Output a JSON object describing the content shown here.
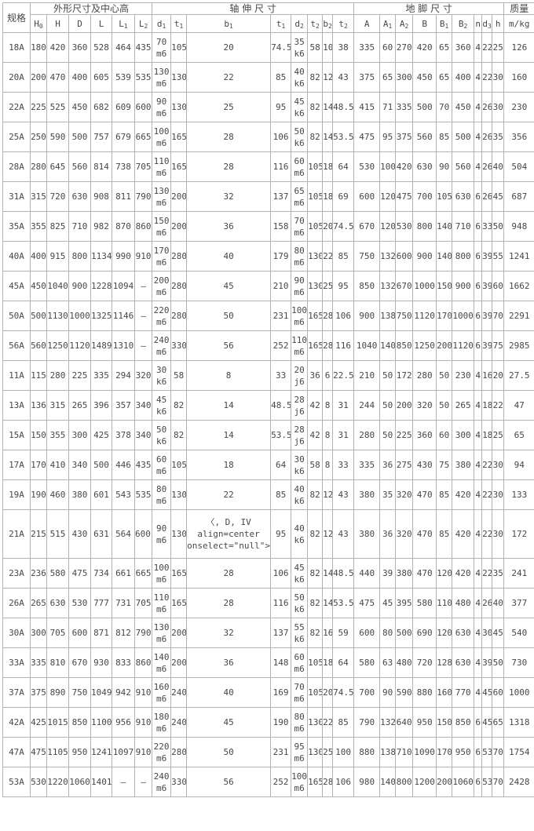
{
  "table": {
    "col_groups": [
      {
        "label": "规格",
        "colspan": 1,
        "rowspan": 2
      },
      {
        "label": "外形尺寸及中心高",
        "colspan": 6,
        "rowspan": 1
      },
      {
        "label": "轴 伸 尺 寸",
        "colspan": 8,
        "rowspan": 1
      },
      {
        "label": "地 脚 尺 寸",
        "colspan": 9,
        "rowspan": 1
      },
      {
        "label": "质量",
        "colspan": 1,
        "rowspan": 1
      }
    ],
    "columns": [
      {
        "b": "H",
        "s": "0"
      },
      {
        "b": "H"
      },
      {
        "b": "D"
      },
      {
        "b": "L"
      },
      {
        "b": "L",
        "s": "1"
      },
      {
        "b": "L",
        "s": "2"
      },
      {
        "b": "d",
        "s": "1"
      },
      {
        "b": "t",
        "s": "1"
      },
      {
        "b": "b",
        "s": "1"
      },
      {
        "b": "t",
        "s": "1"
      },
      {
        "b": "d",
        "s": "2"
      },
      {
        "b": "t",
        "s": "2"
      },
      {
        "b": "b",
        "s": "2"
      },
      {
        "b": "t",
        "s": "2"
      },
      {
        "b": "A"
      },
      {
        "b": "A",
        "s": "1"
      },
      {
        "b": "A",
        "s": "2"
      },
      {
        "b": "B"
      },
      {
        "b": "B",
        "s": "1"
      },
      {
        "b": "B",
        "s": "2"
      },
      {
        "b": "n"
      },
      {
        "b": "d",
        "s": "3"
      },
      {
        "b": "h"
      },
      {
        "b": "m/kg"
      }
    ],
    "rows": [
      [
        "18A",
        "180",
        "420",
        "360",
        "528",
        "464",
        "435",
        "70\nm6",
        "105",
        "20",
        "74.5",
        "35\nk6",
        "58",
        "10",
        "38",
        "335",
        "60",
        "270",
        "420",
        "65",
        "360",
        "4",
        "22",
        "25",
        "126"
      ],
      [
        "20A",
        "200",
        "470",
        "400",
        "605",
        "539",
        "535",
        "130\nm6",
        "130",
        "22",
        "85",
        "40\nk6",
        "82",
        "12",
        "43",
        "375",
        "65",
        "300",
        "450",
        "65",
        "400",
        "4",
        "22",
        "30",
        "160"
      ],
      [
        "22A",
        "225",
        "525",
        "450",
        "682",
        "609",
        "600",
        "90\nm6",
        "130",
        "25",
        "95",
        "45\nk6",
        "82",
        "14",
        "48.5",
        "415",
        "71",
        "335",
        "500",
        "70",
        "450",
        "4",
        "26",
        "30",
        "230"
      ],
      [
        "25A",
        "250",
        "590",
        "500",
        "757",
        "679",
        "665",
        "100\nm6",
        "165",
        "28",
        "106",
        "50\nk6",
        "82",
        "14",
        "53.5",
        "475",
        "95",
        "375",
        "560",
        "85",
        "500",
        "4",
        "26",
        "35",
        "356"
      ],
      [
        "28A",
        "280",
        "645",
        "560",
        "814",
        "738",
        "705",
        "110\nm6",
        "165",
        "28",
        "116",
        "60\nm6",
        "105",
        "18",
        "64",
        "530",
        "100",
        "420",
        "630",
        "90",
        "560",
        "4",
        "26",
        "40",
        "504"
      ],
      [
        "31A",
        "315",
        "720",
        "630",
        "908",
        "811",
        "790",
        "130\nm6",
        "200",
        "32",
        "137",
        "65\nm6",
        "105",
        "18",
        "69",
        "600",
        "120",
        "475",
        "700",
        "105",
        "630",
        "6",
        "26",
        "45",
        "687"
      ],
      [
        "35A",
        "355",
        "825",
        "710",
        "982",
        "870",
        "860",
        "150\nm6",
        "200",
        "36",
        "158",
        "70\nm6",
        "105",
        "20",
        "74.5",
        "670",
        "120",
        "530",
        "800",
        "140",
        "710",
        "6",
        "33",
        "50",
        "948"
      ],
      [
        "40A",
        "400",
        "915",
        "800",
        "1134",
        "990",
        "910",
        "170\nm6",
        "280",
        "40",
        "179",
        "80\nm6",
        "130",
        "22",
        "85",
        "750",
        "132",
        "600",
        "900",
        "140",
        "800",
        "6",
        "39",
        "55",
        "1241"
      ],
      [
        "45A",
        "450",
        "1040",
        "900",
        "1228",
        "1094",
        "—",
        "200\nm6",
        "280",
        "45",
        "210",
        "90\nm6",
        "130",
        "25",
        "95",
        "850",
        "132",
        "670",
        "1000",
        "150",
        "900",
        "6",
        "39",
        "60",
        "1662"
      ],
      [
        "50A",
        "500",
        "1130",
        "1000",
        "1325",
        "1146",
        "—",
        "220\nm6",
        "280",
        "50",
        "231",
        "100\nm6",
        "165",
        "28",
        "106",
        "900",
        "138",
        "750",
        "1120",
        "170",
        "1000",
        "6",
        "39",
        "70",
        "2291"
      ],
      [
        "56A",
        "560",
        "1250",
        "1120",
        "1489",
        "1310",
        "—",
        "240\nm6",
        "330",
        "56",
        "252",
        "110\nm6",
        "165",
        "28",
        "116",
        "1040",
        "140",
        "850",
        "1250",
        "200",
        "1120",
        "6",
        "39",
        "75",
        "2985"
      ],
      [
        "11A",
        "115",
        "280",
        "225",
        "335",
        "294",
        "320",
        "30\nk6",
        "58",
        "8",
        "33",
        "20\nj6",
        "36",
        "6",
        "22.5",
        "210",
        "50",
        "172",
        "280",
        "50",
        "230",
        "4",
        "16",
        "20",
        "27.5"
      ],
      [
        "13A",
        "136",
        "315",
        "265",
        "396",
        "357",
        "340",
        "45\nk6",
        "82",
        "14",
        "48.5",
        "28\nj6",
        "42",
        "8",
        "31",
        "244",
        "50",
        "200",
        "320",
        "50",
        "265",
        "4",
        "18",
        "22",
        "47"
      ],
      [
        "15A",
        "150",
        "355",
        "300",
        "425",
        "378",
        "340",
        "50\nk6",
        "82",
        "14",
        "53.5",
        "28\nj6",
        "42",
        "8",
        "31",
        "280",
        "50",
        "225",
        "360",
        "60",
        "300",
        "4",
        "18",
        "25",
        "65"
      ],
      [
        "17A",
        "170",
        "410",
        "340",
        "500",
        "446",
        "435",
        "60\nm6",
        "105",
        "18",
        "64",
        "30\nk6",
        "58",
        "8",
        "33",
        "335",
        "36",
        "275",
        "430",
        "75",
        "380",
        "4",
        "22",
        "30",
        "94"
      ],
      [
        "19A",
        "190",
        "460",
        "380",
        "601",
        "543",
        "535",
        "80\nm6",
        "130",
        "22",
        "85",
        "40\nk6",
        "82",
        "12",
        "43",
        "380",
        "35",
        "320",
        "470",
        "85",
        "420",
        "4",
        "22",
        "30",
        "133"
      ],
      [
        "21A",
        "215",
        "515",
        "430",
        "631",
        "564",
        "600,",
        "90\nm6",
        "130",
        "〈, D, IV\nalign=center\nonselect=\"null\">25",
        "95",
        "40\nk6",
        "82",
        "12",
        "43",
        "380",
        "36",
        "320",
        "470",
        "85",
        "420",
        "4",
        "22",
        "30",
        "172"
      ],
      [
        "23A",
        "236",
        "580",
        "475",
        "734",
        "661",
        "665",
        "100\nm6",
        "165",
        "28",
        "106",
        "45\nk6",
        "82",
        "14",
        "48.5",
        "440",
        "39",
        "380",
        "470",
        "120",
        "420",
        "4",
        "22",
        "35",
        "241"
      ],
      [
        "26A",
        "265",
        "630",
        "530",
        "777",
        "731",
        "705",
        "110\nm6",
        "165",
        "28",
        "116",
        "50\nk6",
        "82",
        "14",
        "53.5",
        "475",
        "45",
        "395",
        "580",
        "110",
        "480",
        "4",
        "26",
        "40",
        "377"
      ],
      [
        "30A",
        "300",
        "705",
        "600",
        "871",
        "812",
        "790",
        "130\nm6",
        "200",
        "32",
        "137",
        "55\nk6",
        "82",
        "16",
        "59",
        "600",
        "80",
        "500",
        "690",
        "120",
        "630",
        "4",
        "30",
        "45",
        "540"
      ],
      [
        "33A",
        "335",
        "810",
        "670",
        "930",
        "833",
        "860",
        "140\nm6",
        "200",
        "36",
        "148",
        "60\nm6",
        "105",
        "18",
        "64",
        "580",
        "63",
        "480",
        "720",
        "128",
        "630",
        "4",
        "39",
        "50",
        "730"
      ],
      [
        "37A",
        "375",
        "890",
        "750",
        "1049",
        "942",
        "910",
        "160\nm6",
        "240",
        "40",
        "169",
        "70\nm6",
        "105",
        "20",
        "74.5",
        "700",
        "90",
        "590",
        "880",
        "160",
        "770",
        "4",
        "45",
        "60",
        "1000"
      ],
      [
        "42A",
        "425",
        "1015",
        "850",
        "1100",
        "956",
        "910",
        "180\nm6",
        "240",
        "45",
        "190",
        "80\nm6",
        "130",
        "22",
        "85",
        "790",
        "132",
        "640",
        "950",
        "150",
        "850",
        "6",
        "45",
        "65",
        "1318"
      ],
      [
        "47A",
        "475",
        "1105",
        "950",
        "1241",
        "1097",
        "910",
        "220\nm6",
        "280",
        "50",
        "231",
        "95\nm6",
        "130",
        "25",
        "100",
        "880",
        "138",
        "710",
        "1090",
        "170",
        "950",
        "6",
        "53",
        "70",
        "1754"
      ],
      [
        "53A",
        "530",
        "1220",
        "1060",
        "1401",
        "—",
        "—",
        "240\nm6",
        "330",
        "56",
        "252",
        "100\nm6",
        "165",
        "28",
        "106",
        "980",
        "140",
        "800",
        "1200",
        "200",
        "1060",
        "6",
        "53",
        "70",
        "2428"
      ]
    ],
    "tall_row_spec": "21A"
  }
}
